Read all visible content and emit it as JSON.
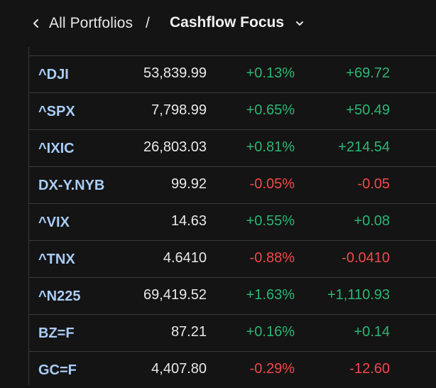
{
  "header": {
    "breadcrumb_parent": "All Portfolios",
    "separator": "/",
    "title": "Cashflow Focus"
  },
  "rows": [
    {
      "symbol": "^DJI",
      "price": "53,839.99",
      "percent_change": "+0.13%",
      "change": "+69.72",
      "direction": "up"
    },
    {
      "symbol": "^SPX",
      "price": "7,798.99",
      "percent_change": "+0.65%",
      "change": "+50.49",
      "direction": "up"
    },
    {
      "symbol": "^IXIC",
      "price": "26,803.03",
      "percent_change": "+0.81%",
      "change": "+214.54",
      "direction": "up"
    },
    {
      "symbol": "DX-Y.NYB",
      "price": "99.92",
      "percent_change": "-0.05%",
      "change": "-0.05",
      "direction": "down"
    },
    {
      "symbol": "^VIX",
      "price": "14.63",
      "percent_change": "+0.55%",
      "change": "+0.08",
      "direction": "up"
    },
    {
      "symbol": "^TNX",
      "price": "4.6410",
      "percent_change": "-0.88%",
      "change": "-0.0410",
      "direction": "down"
    },
    {
      "symbol": "^N225",
      "price": "69,419.52",
      "percent_change": "+1.63%",
      "change": "+1,110.93",
      "direction": "up"
    },
    {
      "symbol": "BZ=F",
      "price": "87.21",
      "percent_change": "+0.16%",
      "change": "+0.14",
      "direction": "up"
    },
    {
      "symbol": "GC=F",
      "price": "4,407.80",
      "percent_change": "-0.29%",
      "change": "-12.60",
      "direction": "down"
    }
  ],
  "colors": {
    "background": "#141414",
    "symbol": "#a9cdf7",
    "positive": "#2bb673",
    "negative": "#f0484a",
    "divider": "#3a3a3a"
  },
  "icons": {
    "back": "chevron-left-icon",
    "dropdown": "chevron-down-icon"
  }
}
